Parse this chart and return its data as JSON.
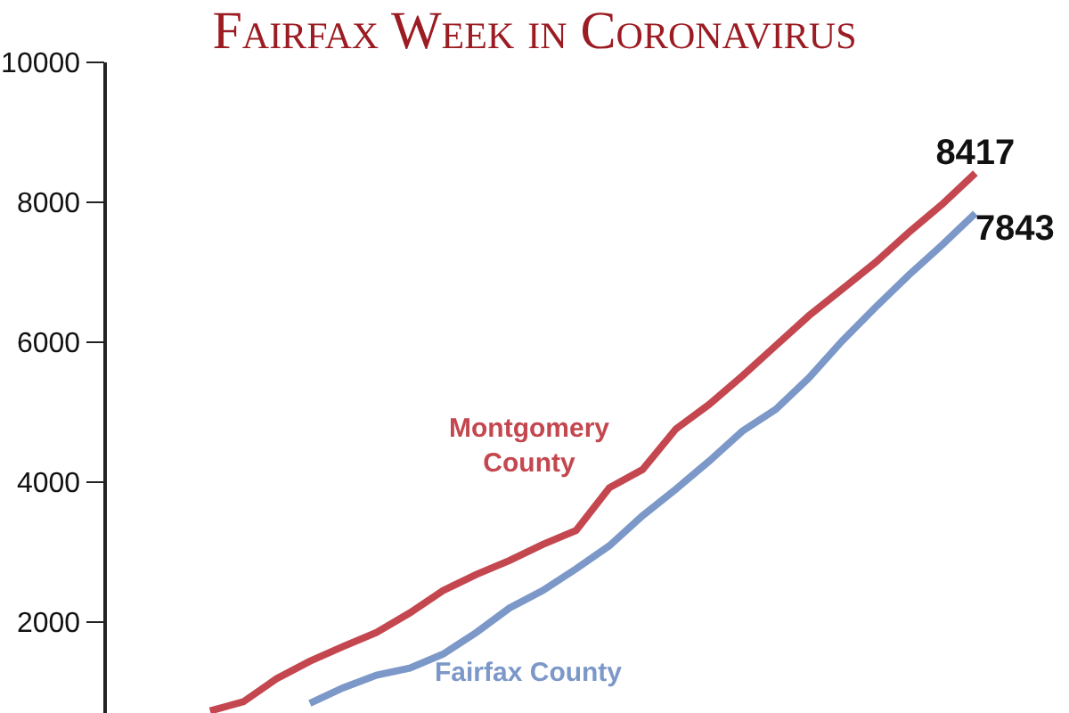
{
  "chart_data": {
    "type": "line",
    "title": "Fairfax Week in Coronavirus",
    "categories": [
      null,
      null,
      null,
      null,
      null,
      null,
      null,
      null,
      null,
      null,
      null,
      null,
      null,
      null,
      null,
      null,
      null,
      null,
      null,
      null,
      null,
      null,
      null,
      null
    ],
    "series": [
      {
        "name": "Montgomery County",
        "color": "#c4474f",
        "values": [
          730,
          860,
          1190,
          1440,
          1650,
          1850,
          2130,
          2450,
          2680,
          2880,
          3110,
          3310,
          3920,
          4180,
          4760,
          5110,
          5520,
          5950,
          6380,
          6760,
          7140,
          7570,
          7970,
          8417
        ],
        "value_labels": [
          null,
          null,
          null,
          null,
          null,
          null,
          null,
          null,
          null,
          null,
          null,
          null,
          null,
          null,
          null,
          null,
          null,
          null,
          null,
          null,
          null,
          null,
          null,
          "8417"
        ]
      },
      {
        "name": "Fairfax County",
        "color": "#7c98c8",
        "values": [
          null,
          null,
          null,
          840,
          1060,
          1240,
          1340,
          1540,
          1850,
          2200,
          2450,
          2760,
          3090,
          3520,
          3900,
          4300,
          4730,
          5040,
          5490,
          6020,
          6500,
          6960,
          7390,
          7843
        ],
        "value_labels": [
          null,
          null,
          null,
          null,
          null,
          null,
          null,
          null,
          null,
          null,
          null,
          null,
          null,
          null,
          null,
          null,
          null,
          null,
          null,
          null,
          null,
          null,
          null,
          "7843"
        ]
      }
    ],
    "ylim": [
      700,
      10000
    ],
    "yticks": [
      2000,
      4000,
      6000,
      8000,
      10000
    ],
    "tick_labels": "y",
    "legend": false,
    "marker": "none",
    "line_style": "solid"
  }
}
